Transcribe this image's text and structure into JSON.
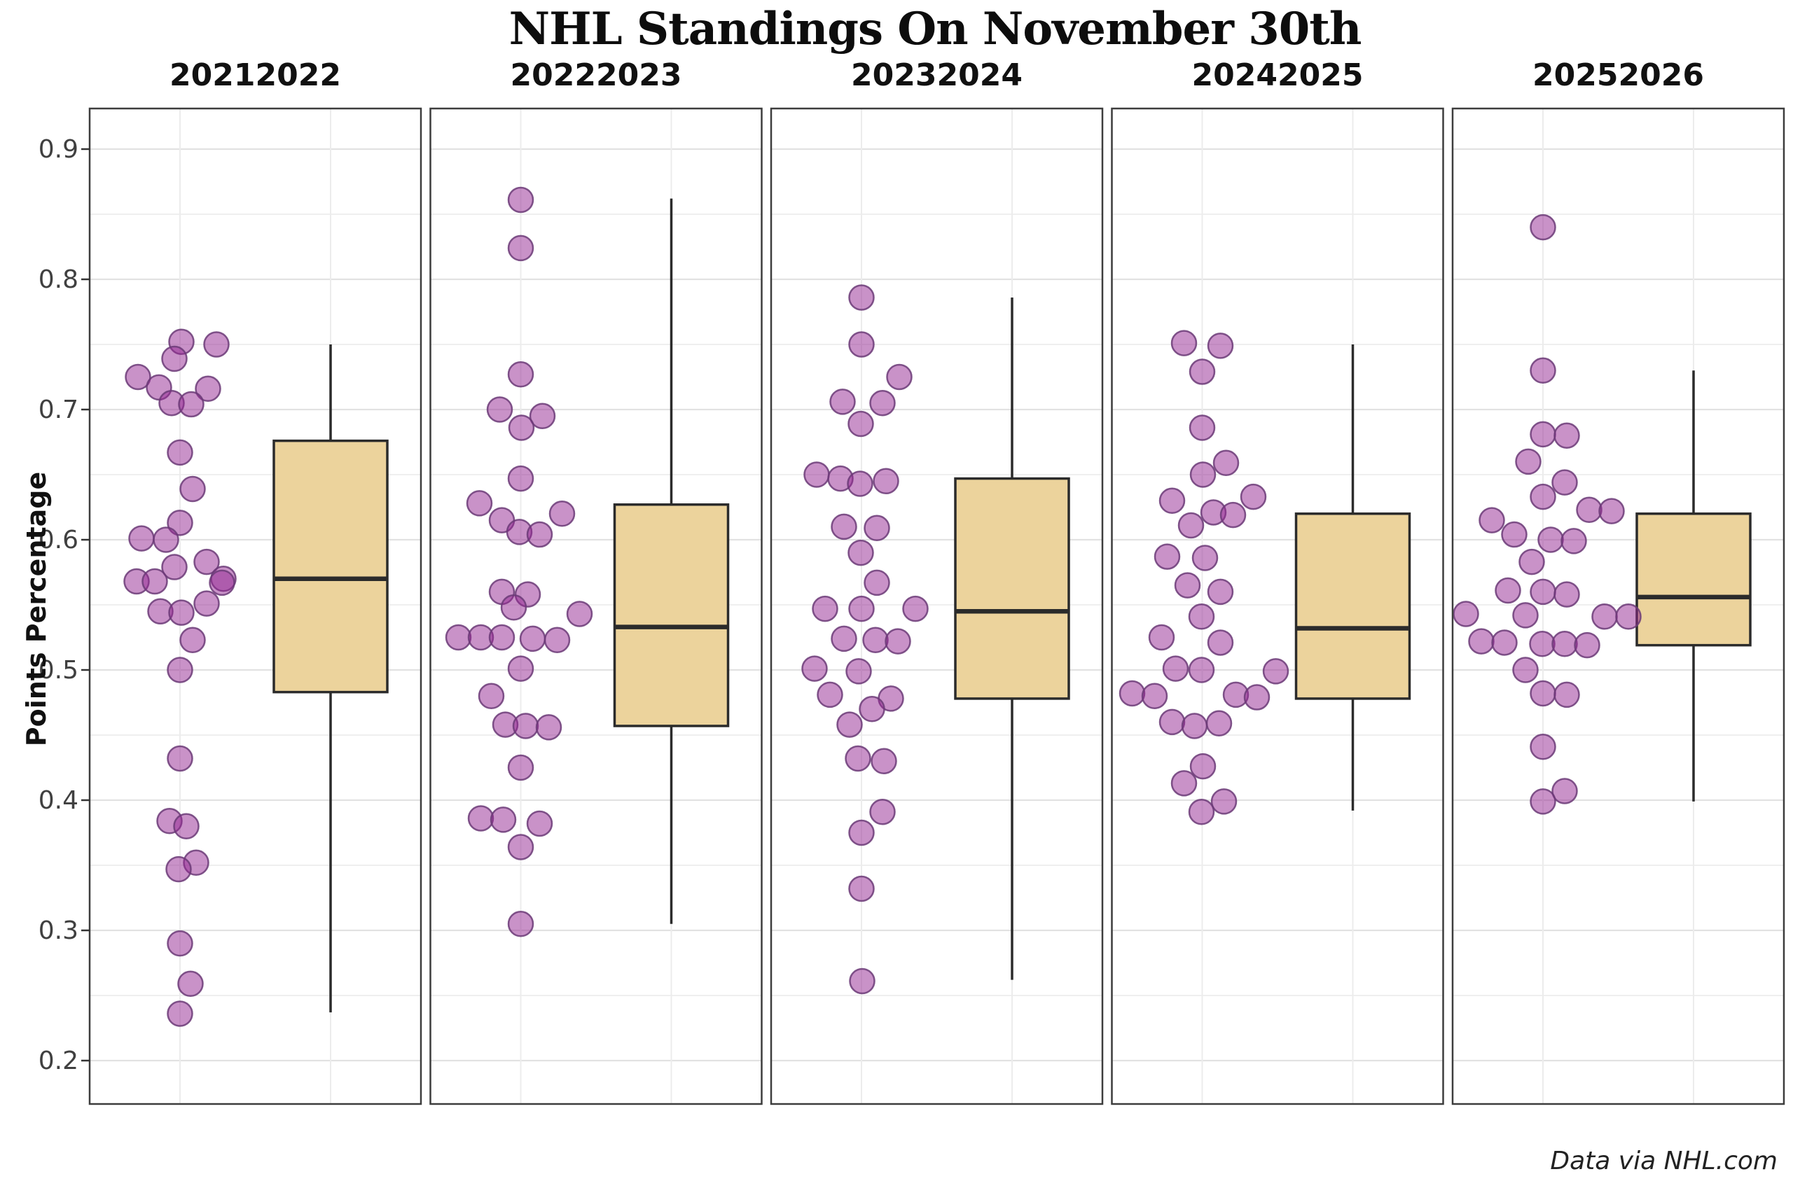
{
  "title": "NHL Standings On November 30th",
  "caption": "Data via NHL.com",
  "chart_data": {
    "type": "scatter",
    "subtype": "jittered-strip-plus-boxplot-faceted",
    "title": "NHL Standings On November 30th",
    "ylabel": "Points Percentage",
    "xlabel": "",
    "ylim": [
      0.167,
      0.931
    ],
    "grid": "on",
    "legend": "none",
    "y_ticks": [
      0.9,
      0.8,
      0.7,
      0.6,
      0.5,
      0.4,
      0.3,
      0.2
    ],
    "y_minor_ticks": [
      0.85,
      0.75,
      0.65,
      0.55,
      0.45,
      0.35,
      0.25
    ],
    "colors": {
      "point_fill": "#932592",
      "point_fill_opacity": 0.5,
      "point_stroke": "#6b3a77",
      "box_fill": "#ecd39c",
      "box_stroke": "#2b2b2b",
      "panel_border": "#3d3d3d",
      "grid_major": "#e2e2e2",
      "grid_minor": "#efefef",
      "background": "#ffffff"
    },
    "facets": [
      {
        "label": "20212022",
        "box": {
          "whisker_low": 0.237,
          "q1": 0.483,
          "median": 0.57,
          "q3": 0.676,
          "whisker_high": 0.75
        },
        "points": [
          [
            0.752,
            2
          ],
          [
            0.75,
            52
          ],
          [
            0.739,
            -8
          ],
          [
            0.725,
            -60
          ],
          [
            0.717,
            -30
          ],
          [
            0.716,
            40
          ],
          [
            0.705,
            -12
          ],
          [
            0.704,
            16
          ],
          [
            0.667,
            0
          ],
          [
            0.639,
            18
          ],
          [
            0.613,
            0
          ],
          [
            0.601,
            -55
          ],
          [
            0.6,
            -20
          ],
          [
            0.583,
            38
          ],
          [
            0.579,
            -8
          ],
          [
            0.57,
            62
          ],
          [
            0.568,
            -62
          ],
          [
            0.568,
            -36
          ],
          [
            0.567,
            60
          ],
          [
            0.551,
            38
          ],
          [
            0.545,
            -28
          ],
          [
            0.544,
            2
          ],
          [
            0.523,
            18
          ],
          [
            0.5,
            0
          ],
          [
            0.432,
            0
          ],
          [
            0.384,
            -15
          ],
          [
            0.38,
            9
          ],
          [
            0.352,
            23
          ],
          [
            0.347,
            -2
          ],
          [
            0.29,
            0
          ],
          [
            0.259,
            15
          ],
          [
            0.236,
            0
          ]
        ]
      },
      {
        "label": "20222023",
        "box": {
          "whisker_low": 0.305,
          "q1": 0.457,
          "median": 0.533,
          "q3": 0.627,
          "whisker_high": 0.862
        },
        "points": [
          [
            0.861,
            0
          ],
          [
            0.824,
            0
          ],
          [
            0.727,
            0
          ],
          [
            0.7,
            -30
          ],
          [
            0.695,
            31
          ],
          [
            0.686,
            1
          ],
          [
            0.647,
            0
          ],
          [
            0.628,
            -59
          ],
          [
            0.62,
            59
          ],
          [
            0.615,
            -27
          ],
          [
            0.606,
            -2
          ],
          [
            0.604,
            27
          ],
          [
            0.56,
            -27
          ],
          [
            0.558,
            10
          ],
          [
            0.548,
            -10
          ],
          [
            0.543,
            84
          ],
          [
            0.525,
            -89
          ],
          [
            0.525,
            -57
          ],
          [
            0.525,
            -27
          ],
          [
            0.524,
            17
          ],
          [
            0.523,
            52
          ],
          [
            0.501,
            0
          ],
          [
            0.48,
            -42
          ],
          [
            0.458,
            -22
          ],
          [
            0.457,
            7
          ],
          [
            0.456,
            40
          ],
          [
            0.425,
            0
          ],
          [
            0.386,
            -57
          ],
          [
            0.385,
            -25
          ],
          [
            0.382,
            27
          ],
          [
            0.364,
            0
          ],
          [
            0.305,
            0
          ]
        ]
      },
      {
        "label": "20232024",
        "box": {
          "whisker_low": 0.262,
          "q1": 0.478,
          "median": 0.545,
          "q3": 0.647,
          "whisker_high": 0.786
        },
        "points": [
          [
            0.786,
            0
          ],
          [
            0.75,
            0
          ],
          [
            0.725,
            54
          ],
          [
            0.706,
            -27
          ],
          [
            0.705,
            30
          ],
          [
            0.689,
            -1
          ],
          [
            0.65,
            -64
          ],
          [
            0.647,
            -30
          ],
          [
            0.645,
            35
          ],
          [
            0.643,
            -2
          ],
          [
            0.61,
            -25
          ],
          [
            0.609,
            22
          ],
          [
            0.59,
            -1
          ],
          [
            0.567,
            22
          ],
          [
            0.547,
            -52
          ],
          [
            0.547,
            0
          ],
          [
            0.547,
            77
          ],
          [
            0.524,
            -25
          ],
          [
            0.523,
            20
          ],
          [
            0.522,
            52
          ],
          [
            0.501,
            -67
          ],
          [
            0.499,
            -4
          ],
          [
            0.481,
            -45
          ],
          [
            0.478,
            42
          ],
          [
            0.47,
            15
          ],
          [
            0.458,
            -17
          ],
          [
            0.432,
            -5
          ],
          [
            0.43,
            32
          ],
          [
            0.391,
            30
          ],
          [
            0.375,
            0
          ],
          [
            0.332,
            0
          ],
          [
            0.261,
            1
          ]
        ]
      },
      {
        "label": "20242025",
        "box": {
          "whisker_low": 0.392,
          "q1": 0.478,
          "median": 0.532,
          "q3": 0.62,
          "whisker_high": 0.75
        },
        "points": [
          [
            0.751,
            -26
          ],
          [
            0.749,
            26
          ],
          [
            0.729,
            0
          ],
          [
            0.686,
            0
          ],
          [
            0.659,
            34
          ],
          [
            0.65,
            1
          ],
          [
            0.633,
            73
          ],
          [
            0.63,
            -43
          ],
          [
            0.621,
            16
          ],
          [
            0.619,
            44
          ],
          [
            0.611,
            -16
          ],
          [
            0.587,
            -50
          ],
          [
            0.586,
            4
          ],
          [
            0.565,
            -21
          ],
          [
            0.56,
            26
          ],
          [
            0.541,
            -1
          ],
          [
            0.525,
            -58
          ],
          [
            0.521,
            26
          ],
          [
            0.501,
            -38
          ],
          [
            0.5,
            -1
          ],
          [
            0.499,
            105
          ],
          [
            0.482,
            -100
          ],
          [
            0.481,
            48
          ],
          [
            0.48,
            -68
          ],
          [
            0.479,
            78
          ],
          [
            0.46,
            -43
          ],
          [
            0.459,
            24
          ],
          [
            0.457,
            -11
          ],
          [
            0.426,
            1
          ],
          [
            0.413,
            -26
          ],
          [
            0.399,
            31
          ],
          [
            0.391,
            -1
          ]
        ]
      },
      {
        "label": "20252026",
        "box": {
          "whisker_low": 0.399,
          "q1": 0.519,
          "median": 0.556,
          "q3": 0.62,
          "whisker_high": 0.73
        },
        "points": [
          [
            0.84,
            0
          ],
          [
            0.73,
            0
          ],
          [
            0.681,
            0
          ],
          [
            0.68,
            34
          ],
          [
            0.66,
            -21
          ],
          [
            0.644,
            31
          ],
          [
            0.633,
            0
          ],
          [
            0.623,
            66
          ],
          [
            0.622,
            98
          ],
          [
            0.615,
            -73
          ],
          [
            0.604,
            -41
          ],
          [
            0.6,
            11
          ],
          [
            0.599,
            44
          ],
          [
            0.583,
            -16
          ],
          [
            0.561,
            -50
          ],
          [
            0.56,
            0
          ],
          [
            0.558,
            34
          ],
          [
            0.543,
            -110
          ],
          [
            0.542,
            -25
          ],
          [
            0.541,
            88
          ],
          [
            0.541,
            122
          ],
          [
            0.522,
            -88
          ],
          [
            0.521,
            -55
          ],
          [
            0.52,
            -1
          ],
          [
            0.52,
            31
          ],
          [
            0.519,
            63
          ],
          [
            0.5,
            -25
          ],
          [
            0.482,
            0
          ],
          [
            0.481,
            34
          ],
          [
            0.441,
            0
          ],
          [
            0.407,
            31
          ],
          [
            0.399,
            0
          ]
        ]
      }
    ]
  }
}
